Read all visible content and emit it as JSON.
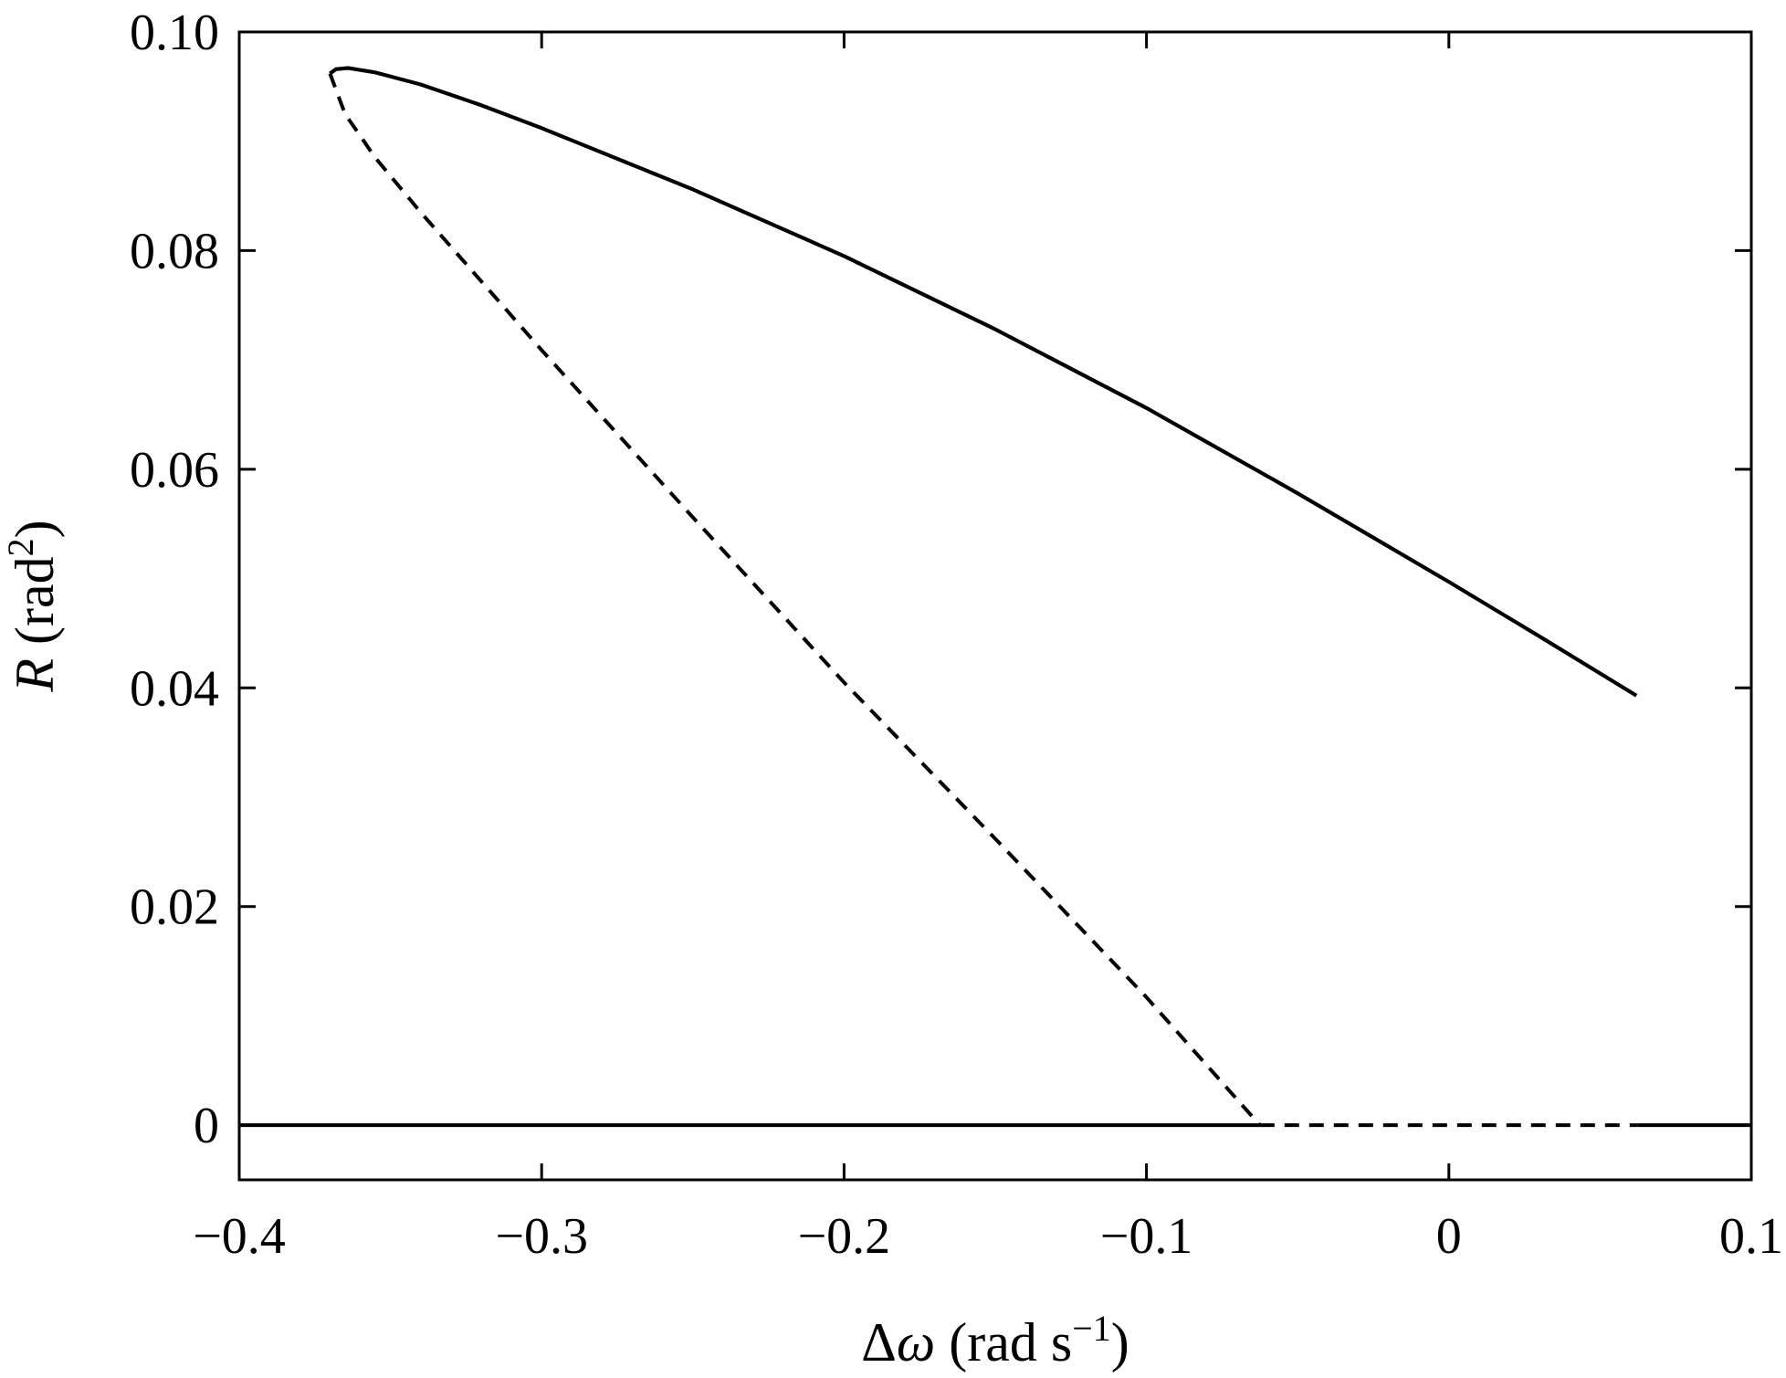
{
  "chart_data": {
    "type": "line",
    "title": "",
    "xlabel": {
      "parts": [
        {
          "text": "Δ",
          "style": "normal"
        },
        {
          "text": "ω",
          "style": "italic"
        },
        {
          "text": " (rad s",
          "style": "normal"
        },
        {
          "text": "−1",
          "style": "superscript"
        },
        {
          "text": ")",
          "style": "normal"
        }
      ]
    },
    "ylabel": {
      "parts": [
        {
          "text": "R",
          "style": "italic"
        },
        {
          "text": " (rad",
          "style": "normal"
        },
        {
          "text": "2",
          "style": "superscript"
        },
        {
          "text": ")",
          "style": "normal"
        }
      ]
    },
    "xlim": [
      -0.4,
      0.1
    ],
    "ylim": [
      -0.005,
      0.1
    ],
    "x_ticks": [
      -0.4,
      -0.3,
      -0.2,
      -0.1,
      0,
      0.1
    ],
    "x_tick_labels": [
      "−0.4",
      "−0.3",
      "−0.2",
      "−0.1",
      "0",
      "0.1"
    ],
    "y_ticks": [
      0,
      0.02,
      0.04,
      0.06,
      0.08,
      0.1
    ],
    "y_tick_labels": [
      "0",
      "0.02",
      "0.04",
      "0.06",
      "0.08",
      "0.10"
    ],
    "grid": false,
    "legend": "none",
    "series": [
      {
        "style": "solid",
        "x": [
          -0.37,
          -0.368,
          -0.364,
          -0.355,
          -0.34,
          -0.32,
          -0.3,
          -0.25,
          -0.2,
          -0.15,
          -0.1,
          -0.05,
          0,
          0.03,
          0.062
        ],
        "y": [
          0.0962,
          0.0966,
          0.0967,
          0.0963,
          0.0952,
          0.0933,
          0.0912,
          0.0856,
          0.0795,
          0.0728,
          0.0656,
          0.0578,
          0.0497,
          0.0447,
          0.0393
        ]
      },
      {
        "style": "solid",
        "x": [
          -0.37,
          -0.368,
          -0.364,
          -0.355,
          -0.34,
          -0.32,
          -0.3,
          -0.25,
          -0.2,
          -0.15,
          -0.1,
          -0.05,
          0,
          0.03,
          0.062
        ],
        "y": [
          0.0962,
          0.0966,
          0.0967,
          0.0963,
          0.0952,
          0.0933,
          0.0912,
          0.0856,
          0.0795,
          0.0728,
          0.0656,
          0.0578,
          0.0497,
          0.0447,
          0.0393
        ]
      },
      {
        "style": "dashed",
        "x": [
          -0.37,
          -0.365,
          -0.355,
          -0.34,
          -0.32,
          -0.3,
          -0.25,
          -0.2,
          -0.15,
          -0.1,
          -0.0625
        ],
        "y": [
          0.0962,
          0.0925,
          0.0885,
          0.0835,
          0.0772,
          0.0709,
          0.0556,
          0.0405,
          0.0262,
          0.0117,
          0.0
        ]
      },
      {
        "style": "solid",
        "x": [
          -0.4,
          -0.0625
        ],
        "y": [
          0.0,
          0.0
        ]
      },
      {
        "style": "dashed",
        "x": [
          -0.0625,
          0.062
        ],
        "y": [
          0.0,
          0.0
        ]
      },
      {
        "style": "solid",
        "x": [
          0.062,
          0.1
        ],
        "y": [
          0.0,
          0.0
        ]
      }
    ]
  }
}
